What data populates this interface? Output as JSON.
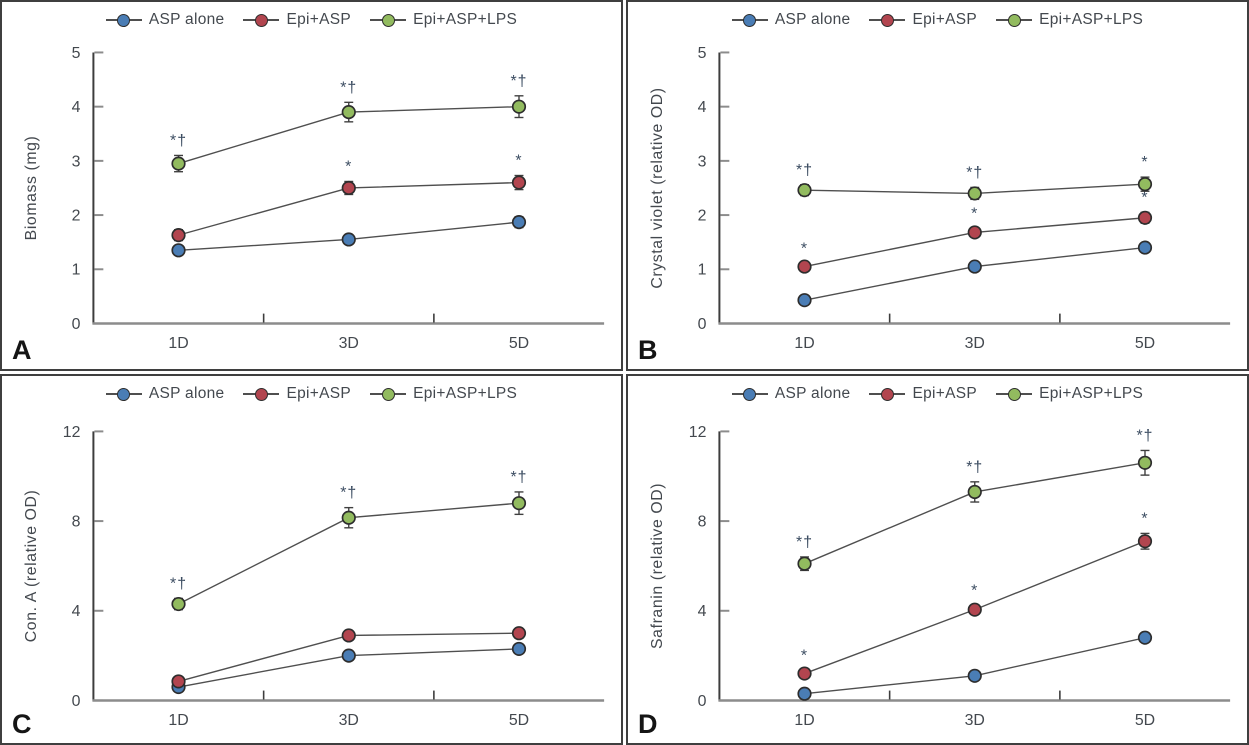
{
  "figure": {
    "legend": {
      "items": [
        {
          "label": "ASP alone",
          "color": "#4a7db5"
        },
        {
          "label": "Epi+ASP",
          "color": "#b2454f"
        },
        {
          "label": "Epi+ASP+LPS",
          "color": "#92bb5f"
        }
      ]
    },
    "colors": {
      "marker_outline": "#2d2d2d",
      "series_line": "#4f4f4f",
      "error_bar": "#3f3f3f",
      "y_axis": "#3d3d3d",
      "x_axis": "#8c8c8c",
      "y_tick": "#8c8c8c",
      "x_tick": "#3d3d3d",
      "text": "#43484e",
      "annotation": "#3b4c61",
      "panel_border": "#3f3f3f"
    }
  },
  "chart_data": [
    {
      "type": "line",
      "panel_label": "A",
      "ylabel": "Biomass (mg)",
      "categories": [
        "1D",
        "3D",
        "5D"
      ],
      "ylim": [
        0,
        5
      ],
      "yticks": [
        0,
        1,
        2,
        3,
        4,
        5
      ],
      "legend_position": "top",
      "grid": false,
      "series": [
        {
          "name": "ASP alone",
          "color": "#4a7db5",
          "values": [
            1.35,
            1.55,
            1.87
          ],
          "errors": [
            0.06,
            0.08,
            0.1
          ],
          "significance": [
            "",
            "",
            ""
          ]
        },
        {
          "name": "Epi+ASP",
          "color": "#b2454f",
          "values": [
            1.63,
            2.5,
            2.6
          ],
          "errors": [
            0.1,
            0.12,
            0.13
          ],
          "significance": [
            "",
            "*",
            "*"
          ]
        },
        {
          "name": "Epi+ASP+LPS",
          "color": "#92bb5f",
          "values": [
            2.95,
            3.9,
            4.0
          ],
          "errors": [
            0.15,
            0.18,
            0.2
          ],
          "significance": [
            "*†",
            "*†",
            "*†"
          ]
        }
      ]
    },
    {
      "type": "line",
      "panel_label": "B",
      "ylabel": "Crystal violet (relative OD)",
      "categories": [
        "1D",
        "3D",
        "5D"
      ],
      "ylim": [
        0,
        5
      ],
      "yticks": [
        0,
        1,
        2,
        3,
        4,
        5
      ],
      "legend_position": "top",
      "grid": false,
      "series": [
        {
          "name": "ASP alone",
          "color": "#4a7db5",
          "values": [
            0.43,
            1.05,
            1.4
          ],
          "errors": [
            0.05,
            0.05,
            0.06
          ],
          "significance": [
            "",
            "",
            ""
          ]
        },
        {
          "name": "Epi+ASP",
          "color": "#b2454f",
          "values": [
            1.05,
            1.68,
            1.95
          ],
          "errors": [
            0.06,
            0.07,
            0.1
          ],
          "significance": [
            "*",
            "*",
            "*"
          ]
        },
        {
          "name": "Epi+ASP+LPS",
          "color": "#92bb5f",
          "values": [
            2.46,
            2.4,
            2.57
          ],
          "errors": [
            0.1,
            0.11,
            0.13
          ],
          "significance": [
            "*†",
            "*†",
            "*"
          ]
        }
      ]
    },
    {
      "type": "line",
      "panel_label": "C",
      "ylabel": "Con. A (relative OD)",
      "categories": [
        "1D",
        "3D",
        "5D"
      ],
      "ylim": [
        0,
        12
      ],
      "yticks": [
        0,
        4,
        8,
        12
      ],
      "legend_position": "top",
      "grid": false,
      "series": [
        {
          "name": "ASP alone",
          "color": "#4a7db5",
          "values": [
            0.6,
            2.0,
            2.3
          ],
          "errors": [
            0.08,
            0.1,
            0.1
          ],
          "significance": [
            "",
            "",
            ""
          ]
        },
        {
          "name": "Epi+ASP",
          "color": "#b2454f",
          "values": [
            0.85,
            2.9,
            3.0
          ],
          "errors": [
            0.1,
            0.12,
            0.12
          ],
          "significance": [
            "",
            "",
            ""
          ]
        },
        {
          "name": "Epi+ASP+LPS",
          "color": "#92bb5f",
          "values": [
            4.3,
            8.15,
            8.8
          ],
          "errors": [
            0.25,
            0.45,
            0.5
          ],
          "significance": [
            "*†",
            "*†",
            "*†"
          ]
        }
      ]
    },
    {
      "type": "line",
      "panel_label": "D",
      "ylabel": "Safranin (relative OD)",
      "categories": [
        "1D",
        "3D",
        "5D"
      ],
      "ylim": [
        0,
        12
      ],
      "yticks": [
        0,
        4,
        8,
        12
      ],
      "legend_position": "top",
      "grid": false,
      "series": [
        {
          "name": "ASP alone",
          "color": "#4a7db5",
          "values": [
            0.3,
            1.1,
            2.8
          ],
          "errors": [
            0.1,
            0.12,
            0.15
          ],
          "significance": [
            "",
            "",
            ""
          ]
        },
        {
          "name": "Epi+ASP",
          "color": "#b2454f",
          "values": [
            1.2,
            4.05,
            7.1
          ],
          "errors": [
            0.15,
            0.2,
            0.35
          ],
          "significance": [
            "*",
            "*",
            "*"
          ]
        },
        {
          "name": "Epi+ASP+LPS",
          "color": "#92bb5f",
          "values": [
            6.1,
            9.3,
            10.6
          ],
          "errors": [
            0.3,
            0.45,
            0.55
          ],
          "significance": [
            "*†",
            "*†",
            "*†"
          ]
        }
      ]
    }
  ]
}
